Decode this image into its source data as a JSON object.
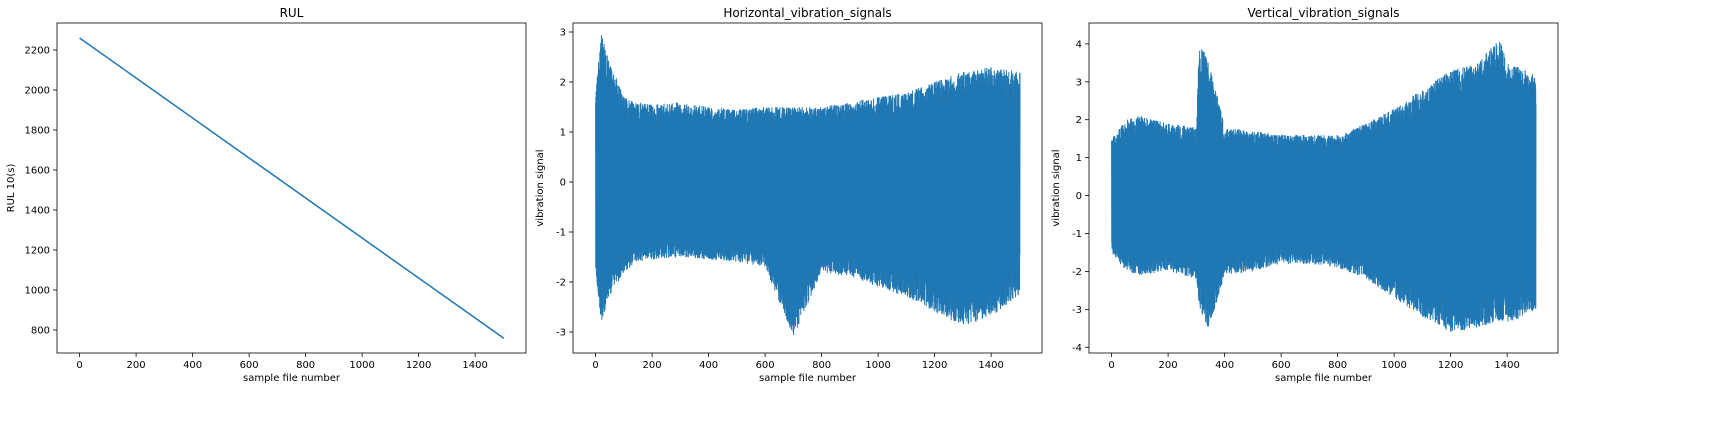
{
  "chart_data": [
    {
      "type": "line",
      "title": "RUL",
      "xlabel": "sample file number",
      "ylabel": "RUL 10(s)",
      "xlim": [
        -80,
        1580
      ],
      "ylim": [
        685,
        2335
      ],
      "xticks": [
        0,
        200,
        400,
        600,
        800,
        1000,
        1200,
        1400
      ],
      "yticks": [
        800,
        1000,
        1200,
        1400,
        1600,
        1800,
        2000,
        2200
      ],
      "grid": false,
      "color": "#1f77b4",
      "series": [
        {
          "x": [
            0,
            1502
          ],
          "y": [
            2260,
            758
          ]
        }
      ]
    },
    {
      "type": "line",
      "title": "Horizontal_vibration_signals",
      "xlabel": "sample file number",
      "ylabel": "vibration signal",
      "xlim": [
        -80,
        1580
      ],
      "ylim": [
        -3.42,
        3.18
      ],
      "xticks": [
        0,
        200,
        400,
        600,
        800,
        1000,
        1200,
        1400
      ],
      "yticks": [
        -3,
        -2,
        -1,
        0,
        1,
        2,
        3
      ],
      "grid": false,
      "color": "#1f77b4",
      "series": [
        {
          "x": [
            0,
            20,
            50,
            100,
            150,
            200,
            300,
            400,
            500,
            600,
            700,
            800,
            900,
            1000,
            1100,
            1200,
            1300,
            1400,
            1502
          ],
          "y_max": [
            1.8,
            2.97,
            2.4,
            1.7,
            1.6,
            1.55,
            1.6,
            1.5,
            1.45,
            1.5,
            1.5,
            1.5,
            1.6,
            1.7,
            1.8,
            2.0,
            2.2,
            2.3,
            2.2
          ],
          "y_min": [
            -1.8,
            -2.8,
            -2.3,
            -1.8,
            -1.6,
            -1.55,
            -1.5,
            -1.55,
            -1.6,
            -1.7,
            -3.1,
            -1.8,
            -1.9,
            -2.1,
            -2.3,
            -2.6,
            -2.9,
            -2.7,
            -2.3
          ]
        }
      ]
    },
    {
      "type": "line",
      "title": "Vertical_vibration_signals",
      "xlabel": "sample file number",
      "ylabel": "vibration signal",
      "xlim": [
        -80,
        1580
      ],
      "ylim": [
        -4.15,
        4.55
      ],
      "xticks": [
        0,
        200,
        400,
        600,
        800,
        1000,
        1200,
        1400
      ],
      "yticks": [
        -4,
        -3,
        -2,
        -1,
        0,
        1,
        2,
        3,
        4
      ],
      "grid": false,
      "color": "#1f77b4",
      "series": [
        {
          "x": [
            0,
            50,
            100,
            200,
            300,
            310,
            340,
            400,
            500,
            600,
            700,
            800,
            900,
            1000,
            1100,
            1200,
            1300,
            1370,
            1400,
            1502
          ],
          "y_max": [
            1.5,
            2.0,
            2.1,
            1.9,
            1.8,
            4.0,
            3.7,
            1.8,
            1.7,
            1.6,
            1.6,
            1.6,
            1.9,
            2.3,
            2.8,
            3.3,
            3.5,
            4.2,
            3.5,
            3.2
          ],
          "y_min": [
            -1.5,
            -2.0,
            -2.1,
            -2.0,
            -2.2,
            -2.9,
            -3.6,
            -2.1,
            -2.0,
            -1.8,
            -1.8,
            -1.9,
            -2.2,
            -2.7,
            -3.2,
            -3.6,
            -3.5,
            -3.3,
            -3.4,
            -3.0
          ]
        }
      ]
    }
  ]
}
